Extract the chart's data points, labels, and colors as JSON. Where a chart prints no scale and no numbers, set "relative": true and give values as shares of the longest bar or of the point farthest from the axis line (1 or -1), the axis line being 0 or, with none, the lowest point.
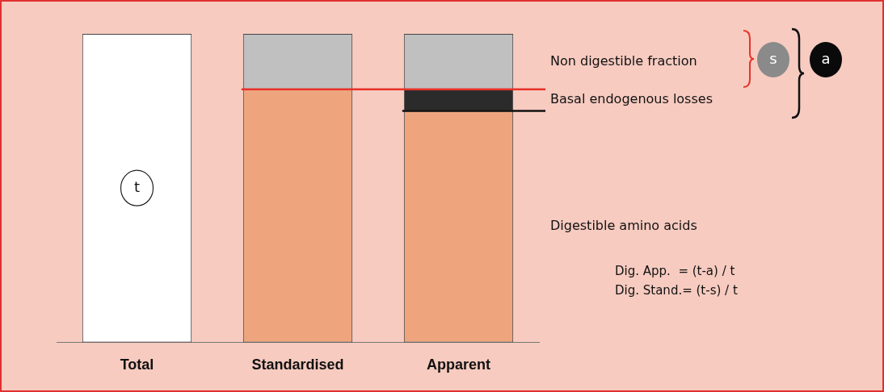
{
  "chart_data": {
    "type": "bar",
    "stacked": true,
    "relative": true,
    "categories": [
      "Total",
      "Standardised",
      "Apparent"
    ],
    "series": [
      {
        "color": "#ffffff",
        "values": [
          1,
          null,
          null
        ]
      },
      {
        "name": "Digestible amino acids",
        "color": "#eea57e",
        "values": [
          null,
          0.82,
          0.75
        ]
      },
      {
        "name": "Basal endogenous losses",
        "color": "#2b2b2b",
        "values": [
          null,
          null,
          0.07
        ]
      },
      {
        "name": "Non digestible fraction",
        "color": "#c0c0c0",
        "values": [
          null,
          0.18,
          0.18
        ]
      }
    ],
    "ref_lines": [
      {
        "axis": "y",
        "value": 0.82,
        "color": "#e8322a"
      },
      {
        "axis": "y",
        "value": 0.75,
        "color": "#111111"
      }
    ],
    "annotations": [
      {
        "text": "t",
        "x": "Total",
        "y": 0.5
      },
      "s",
      "a",
      "Dig. App.  = (t-a) / t",
      "Dig. Stand.= (t-s) / t"
    ]
  }
}
